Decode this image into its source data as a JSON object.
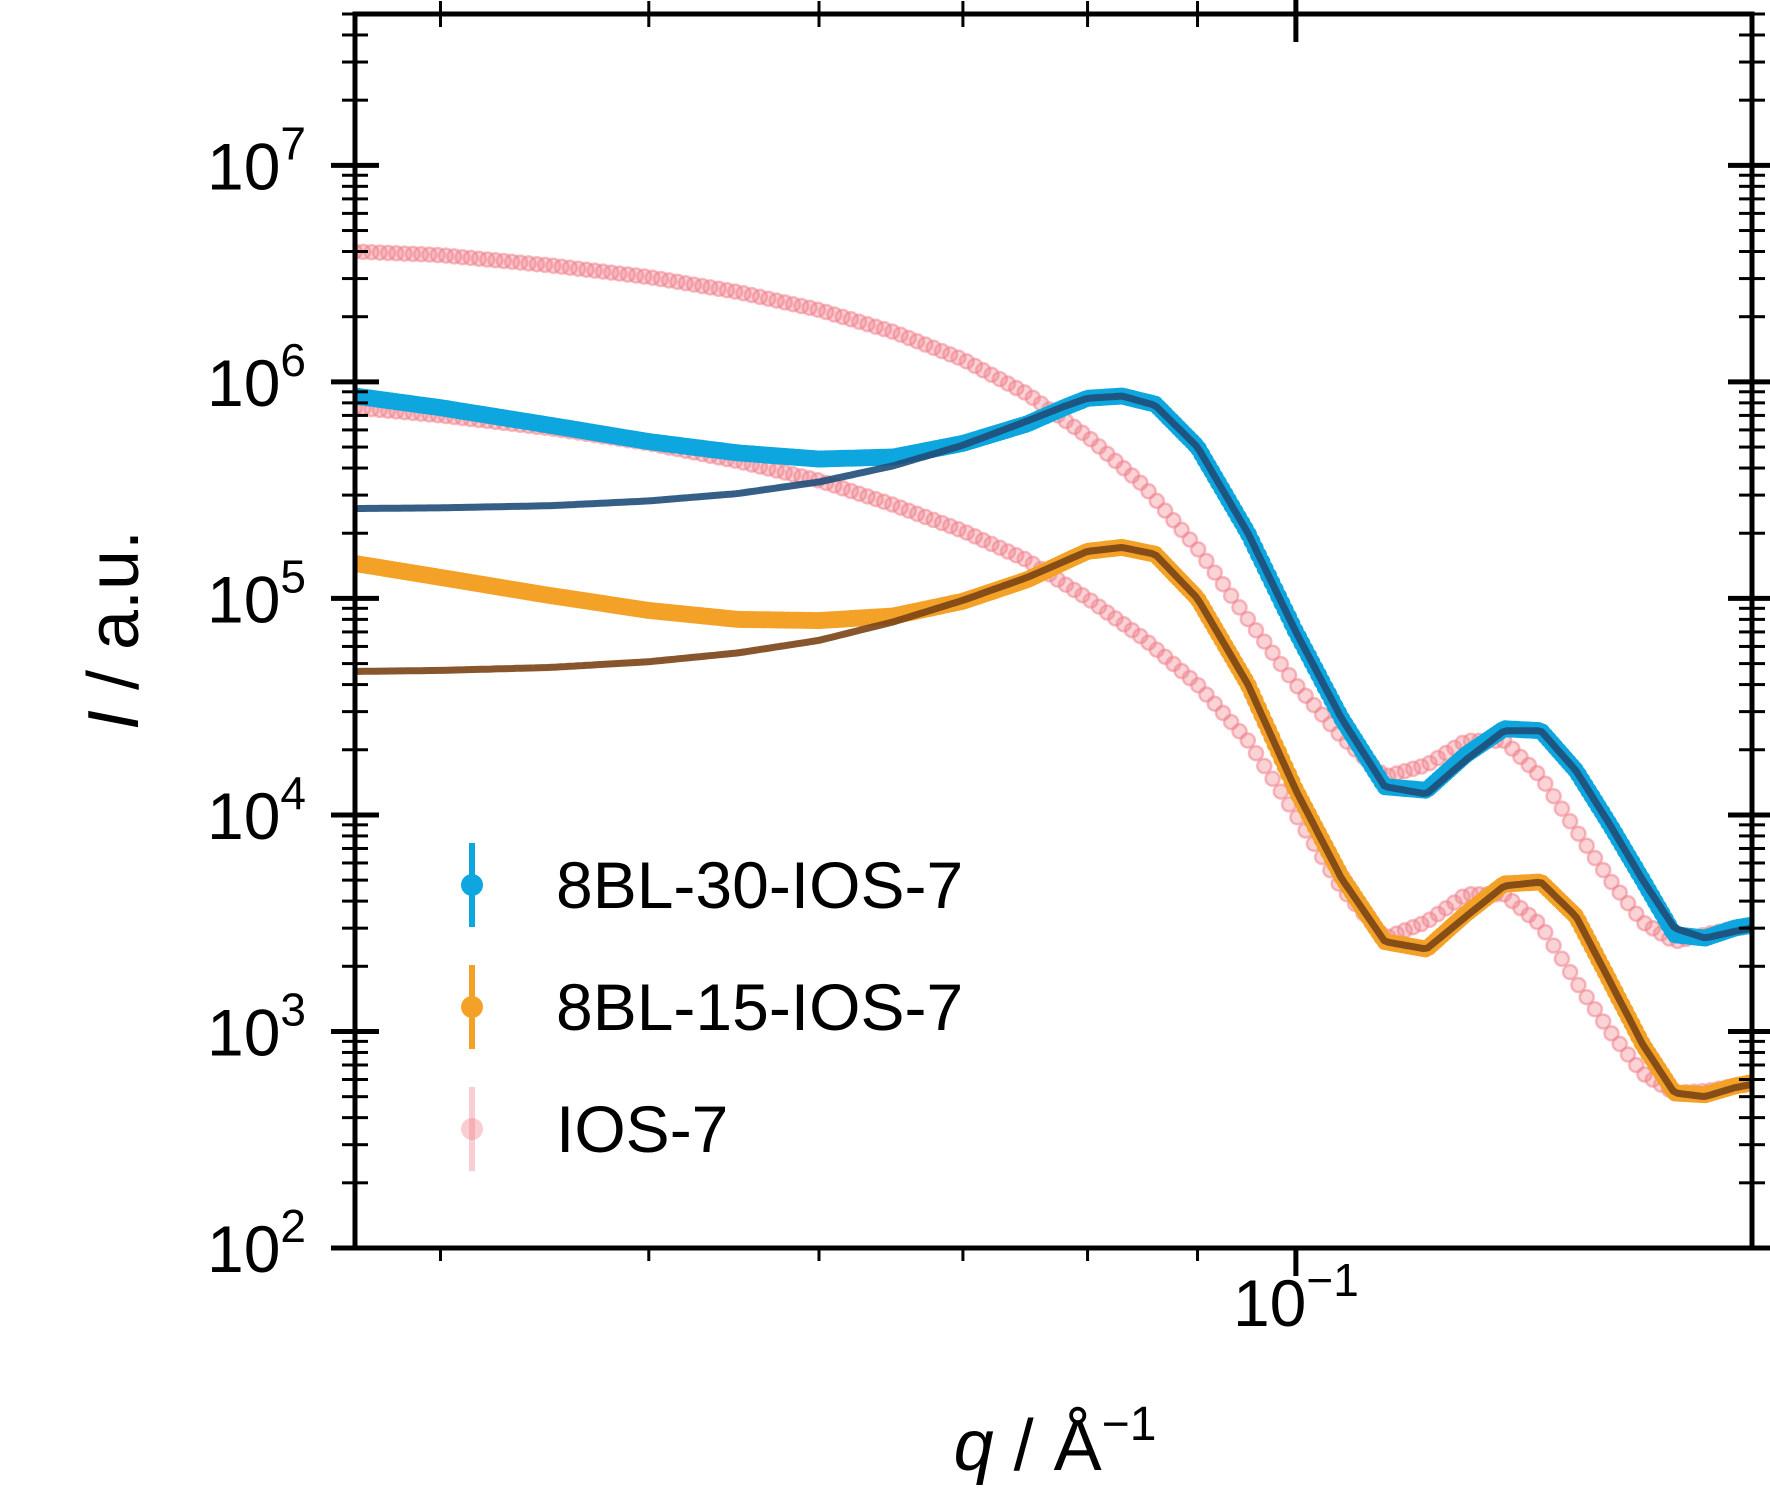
{
  "chart_data": {
    "type": "scatter",
    "xscale": "log",
    "yscale": "log",
    "xlim": [
      0.0365,
      0.163
    ],
    "ylim": [
      100,
      50000000
    ],
    "x_ticks": [
      {
        "value": 0.1,
        "label": "10",
        "exp": "−1"
      }
    ],
    "y_ticks": [
      {
        "value": 100,
        "label": "10",
        "exp": "2"
      },
      {
        "value": 1000,
        "label": "10",
        "exp": "3"
      },
      {
        "value": 10000,
        "label": "10",
        "exp": "4"
      },
      {
        "value": 100000,
        "label": "10",
        "exp": "5"
      },
      {
        "value": 1000000,
        "label": "10",
        "exp": "6"
      },
      {
        "value": 10000000,
        "label": "10",
        "exp": "7"
      }
    ],
    "xlabel": {
      "symbol": "q",
      "unit": " / Å",
      "exp": "−1"
    },
    "ylabel": {
      "symbol": "I",
      "unit": " / a.u."
    },
    "legend_position": "lower-left",
    "series": [
      {
        "name": "IOS-7",
        "color": "#f0828c",
        "style": "markers-faint",
        "x": [
          0.0365,
          0.04,
          0.045,
          0.05,
          0.055,
          0.06,
          0.065,
          0.07,
          0.075,
          0.08,
          0.085,
          0.09,
          0.095,
          0.1,
          0.105,
          0.11,
          0.115,
          0.12,
          0.125,
          0.13,
          0.135,
          0.14,
          0.145,
          0.15,
          0.155,
          0.16,
          0.163
        ],
        "y": [
          4000000,
          3850000,
          3450000,
          3050000,
          2600000,
          2150000,
          1700000,
          1270000,
          880000,
          560000,
          330000,
          170000,
          80000,
          40000,
          23000,
          15000,
          17000,
          22000,
          22000,
          15000,
          8500,
          5000,
          3200,
          2600,
          2800,
          3000,
          3100
        ]
      },
      {
        "name": "IOS-7",
        "color": "#f0828c",
        "style": "markers-faint",
        "x": [
          0.0365,
          0.04,
          0.045,
          0.05,
          0.055,
          0.06,
          0.065,
          0.07,
          0.075,
          0.08,
          0.085,
          0.09,
          0.095,
          0.1,
          0.105,
          0.11,
          0.115,
          0.12,
          0.125,
          0.13,
          0.135,
          0.14,
          0.145,
          0.15,
          0.155,
          0.16,
          0.163
        ],
        "y": [
          760000,
          700000,
          610000,
          520000,
          430000,
          350000,
          270000,
          205000,
          150000,
          100000,
          65000,
          40000,
          22000,
          10000,
          4600,
          2700,
          3200,
          4300,
          4300,
          3100,
          1700,
          1000,
          640,
          520,
          530,
          560,
          570
        ]
      },
      {
        "name": "8BL-30-IOS-7",
        "color": "#0da6de",
        "style": "markers",
        "x": [
          0.0365,
          0.04,
          0.045,
          0.05,
          0.055,
          0.06,
          0.065,
          0.07,
          0.075,
          0.078,
          0.08,
          0.083,
          0.086,
          0.09,
          0.095,
          0.1,
          0.105,
          0.11,
          0.115,
          0.12,
          0.125,
          0.13,
          0.135,
          0.14,
          0.145,
          0.15,
          0.155,
          0.16,
          0.163
        ],
        "y": [
          860000,
          760000,
          630000,
          530000,
          470000,
          440000,
          450000,
          520000,
          640000,
          760000,
          840000,
          860000,
          790000,
          500000,
          200000,
          70000,
          28000,
          13500,
          13000,
          19000,
          25000,
          24500,
          16000,
          9000,
          5000,
          2800,
          2700,
          3000,
          3100
        ]
      },
      {
        "name": "8BL-15-IOS-7",
        "color": "#f4a227",
        "style": "markers",
        "x": [
          0.0365,
          0.04,
          0.045,
          0.05,
          0.055,
          0.06,
          0.065,
          0.07,
          0.075,
          0.078,
          0.08,
          0.083,
          0.086,
          0.09,
          0.095,
          0.1,
          0.105,
          0.11,
          0.115,
          0.12,
          0.125,
          0.13,
          0.135,
          0.14,
          0.145,
          0.15,
          0.155,
          0.16,
          0.163
        ],
        "y": [
          145000,
          125000,
          103000,
          88000,
          80000,
          79000,
          83000,
          97000,
          122000,
          147000,
          165000,
          172000,
          160000,
          100000,
          40000,
          13000,
          5200,
          2600,
          2400,
          3500,
          4800,
          4900,
          3400,
          1700,
          870,
          520,
          510,
          560,
          580
        ]
      },
      {
        "name": "",
        "color": "#1f4e79",
        "style": "fit",
        "x": [
          0.0365,
          0.04,
          0.045,
          0.05,
          0.055,
          0.06,
          0.065,
          0.07,
          0.075,
          0.078,
          0.08,
          0.083,
          0.086,
          0.09,
          0.095,
          0.1,
          0.105,
          0.11,
          0.115,
          0.12,
          0.125,
          0.13,
          0.135,
          0.14,
          0.145,
          0.15,
          0.155,
          0.16,
          0.163
        ],
        "y": [
          260000,
          262000,
          268000,
          282000,
          305000,
          345000,
          410000,
          510000,
          660000,
          770000,
          840000,
          860000,
          780000,
          500000,
          200000,
          70000,
          28000,
          13500,
          12500,
          18000,
          24500,
          24500,
          16000,
          9000,
          5000,
          3000,
          2700,
          2900,
          3000
        ]
      },
      {
        "name": "",
        "color": "#7a4416",
        "style": "fit",
        "x": [
          0.0365,
          0.04,
          0.045,
          0.05,
          0.055,
          0.06,
          0.065,
          0.07,
          0.075,
          0.078,
          0.08,
          0.083,
          0.086,
          0.09,
          0.095,
          0.1,
          0.105,
          0.11,
          0.115,
          0.12,
          0.125,
          0.13,
          0.135,
          0.14,
          0.145,
          0.15,
          0.155,
          0.16,
          0.163
        ],
        "y": [
          46000,
          46500,
          48000,
          51000,
          56000,
          64000,
          78000,
          98000,
          125000,
          148000,
          165000,
          172000,
          160000,
          100000,
          40000,
          13000,
          5100,
          2600,
          2400,
          3400,
          4700,
          4900,
          3400,
          1700,
          870,
          520,
          500,
          550,
          570
        ]
      }
    ],
    "legend": [
      {
        "label": "8BL-30-IOS-7",
        "color": "#0da6de",
        "faint": false
      },
      {
        "label": "8BL-15-IOS-7",
        "color": "#f4a227",
        "faint": false
      },
      {
        "label": "IOS-7",
        "color": "#f0828c",
        "faint": true
      }
    ]
  }
}
